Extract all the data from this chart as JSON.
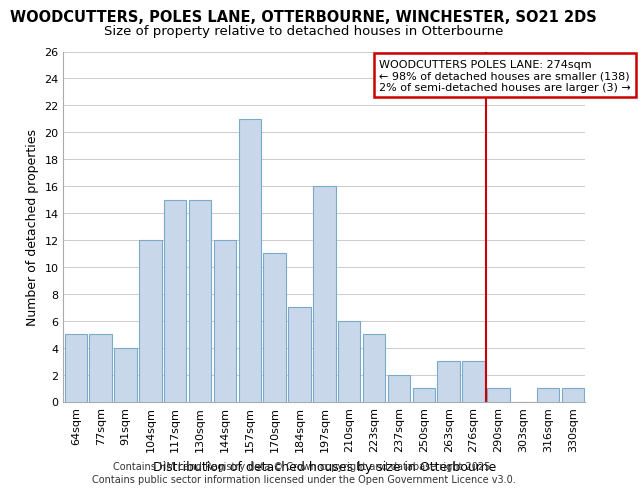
{
  "title": "WOODCUTTERS, POLES LANE, OTTERBOURNE, WINCHESTER, SO21 2DS",
  "subtitle": "Size of property relative to detached houses in Otterbourne",
  "xlabel": "Distribution of detached houses by size in Otterbourne",
  "ylabel": "Number of detached properties",
  "bar_labels": [
    "64sqm",
    "77sqm",
    "91sqm",
    "104sqm",
    "117sqm",
    "130sqm",
    "144sqm",
    "157sqm",
    "170sqm",
    "184sqm",
    "197sqm",
    "210sqm",
    "223sqm",
    "237sqm",
    "250sqm",
    "263sqm",
    "276sqm",
    "290sqm",
    "303sqm",
    "316sqm",
    "330sqm"
  ],
  "bar_values": [
    5,
    5,
    4,
    12,
    15,
    15,
    12,
    21,
    11,
    7,
    16,
    6,
    5,
    2,
    1,
    3,
    3,
    1,
    0,
    1,
    1
  ],
  "bar_color": "#c8d8ea",
  "bar_edgecolor": "#7aaac8",
  "vline_x_index": 16,
  "vline_color": "#cc0000",
  "annotation_text": "WOODCUTTERS POLES LANE: 274sqm\n← 98% of detached houses are smaller (138)\n2% of semi-detached houses are larger (3) →",
  "annotation_box_color": "#cc0000",
  "ylim": [
    0,
    26
  ],
  "yticks": [
    0,
    2,
    4,
    6,
    8,
    10,
    12,
    14,
    16,
    18,
    20,
    22,
    24,
    26
  ],
  "background_color": "#ffffff",
  "grid_color": "#cccccc",
  "footer_line1": "Contains HM Land Registry data © Crown copyright and database right 2025.",
  "footer_line2": "Contains public sector information licensed under the Open Government Licence v3.0.",
  "title_fontsize": 10.5,
  "subtitle_fontsize": 9.5,
  "axis_label_fontsize": 9,
  "tick_fontsize": 8,
  "annotation_fontsize": 8,
  "footer_fontsize": 7
}
